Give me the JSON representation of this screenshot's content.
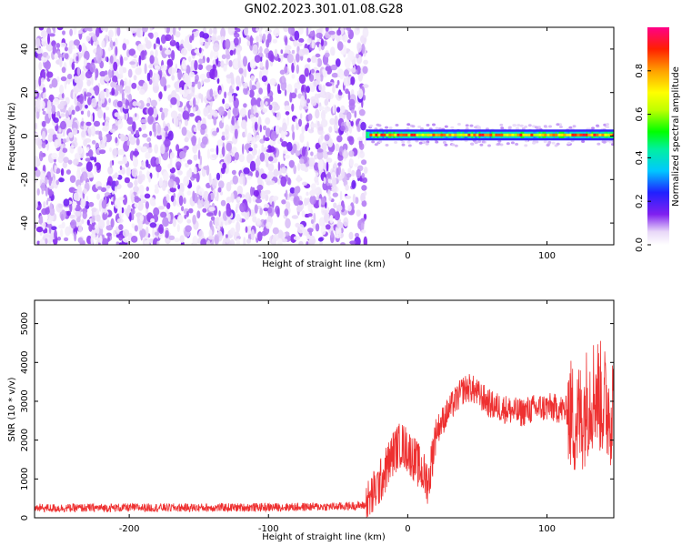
{
  "title": "GN02.2023.301.01.08.G28",
  "chart_data": [
    {
      "type": "heatmap",
      "xlabel": "Height of straight line (km)",
      "ylabel": "Frequency (Hz)",
      "xlim": [
        -268,
        148
      ],
      "ylim": [
        -50,
        50
      ],
      "xticks": [
        -200,
        -100,
        0,
        100
      ],
      "yticks": [
        -40,
        -20,
        0,
        20,
        40
      ],
      "colorbar": {
        "label": "Normalized spectral amplitude",
        "range": [
          0.0,
          1.0
        ],
        "ticks": [
          0.0,
          0.2,
          0.4,
          0.6,
          0.8
        ],
        "colormap": "white-purple-blue-cyan-green-yellow-orange-red-pink"
      },
      "regions": [
        {
          "description": "broadband low-amplitude speckle",
          "x_range": [
            -268,
            -30
          ],
          "y_range": [
            -50,
            50
          ],
          "amplitude": [
            0.0,
            0.2
          ]
        },
        {
          "description": "narrow high-amplitude band near 0 Hz",
          "x_range": [
            -30,
            148
          ],
          "y_center": 0.5,
          "half_width_hz": 2.5,
          "amplitude": [
            0.3,
            1.0
          ]
        }
      ]
    },
    {
      "type": "line",
      "xlabel": "Height of straight line (km)",
      "ylabel": "SNR (10 * v/v)",
      "xlim": [
        -268,
        148
      ],
      "ylim": [
        0,
        5600
      ],
      "xticks": [
        -200,
        -100,
        0,
        100
      ],
      "yticks": [
        0,
        1000,
        2000,
        3000,
        4000,
        5000
      ],
      "series": [
        {
          "color": "#ee3030",
          "x": [
            -268,
            -250,
            -200,
            -150,
            -100,
            -50,
            -30,
            -20,
            -15,
            -10,
            -5,
            0,
            5,
            10,
            15,
            20,
            30,
            40,
            45,
            50,
            60,
            70,
            80,
            90,
            100,
            110,
            115,
            120,
            125,
            130,
            135,
            140,
            145,
            148
          ],
          "y": [
            250,
            250,
            260,
            260,
            270,
            290,
            320,
            900,
            1300,
            1700,
            1900,
            1750,
            1500,
            1200,
            900,
            2200,
            2800,
            3300,
            3350,
            3200,
            2900,
            2800,
            2700,
            2800,
            2850,
            2800,
            2750,
            2500,
            2600,
            3100,
            3300,
            3000,
            2800,
            2900
          ]
        }
      ]
    }
  ]
}
